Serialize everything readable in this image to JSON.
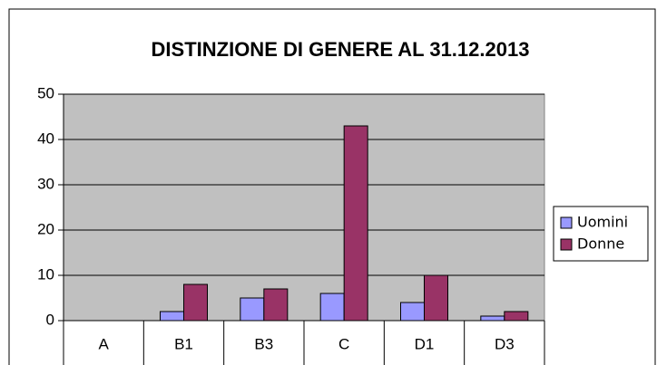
{
  "chart_data": {
    "type": "bar",
    "title": "DISTINZIONE DI GENERE AL 31.12.2013",
    "categories": [
      "A",
      "B1",
      "B3",
      "C",
      "D1",
      "D3"
    ],
    "series": [
      {
        "name": "Uomini",
        "color": "#9999ff",
        "values": [
          0,
          2,
          5,
          6,
          4,
          1
        ]
      },
      {
        "name": "Donne",
        "color": "#993366",
        "values": [
          0,
          8,
          7,
          43,
          10,
          2
        ]
      }
    ],
    "ylim": [
      0,
      50
    ],
    "yticks": [
      0,
      10,
      20,
      30,
      40,
      50
    ],
    "grid": true,
    "legend": "right"
  }
}
